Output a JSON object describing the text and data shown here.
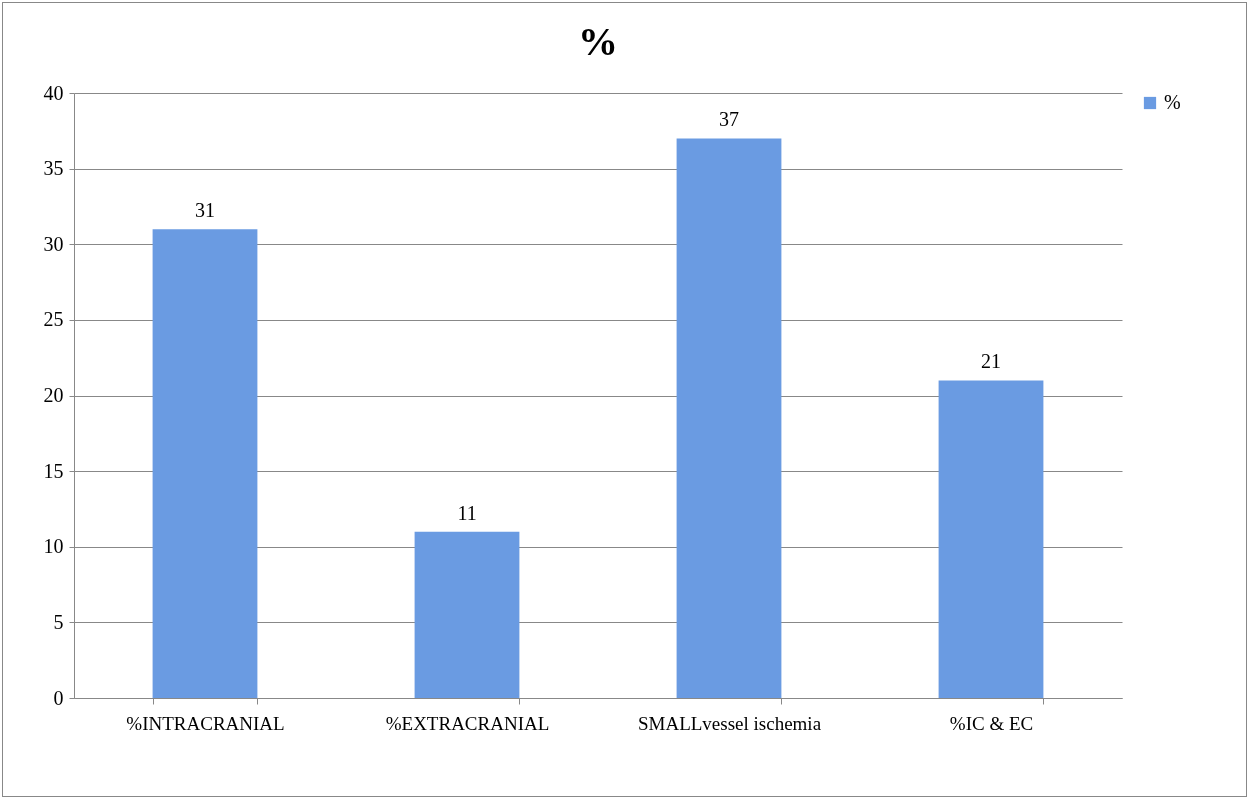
{
  "chart_data": {
    "type": "bar",
    "title": "%",
    "categories": [
      "%INTRACRANIAL",
      "%EXTRACRANIAL",
      "SMALLvessel ischemia",
      "%IC & EC"
    ],
    "series": [
      {
        "name": "%",
        "color": "#6a9be2",
        "values": [
          31,
          11,
          37,
          21
        ]
      }
    ],
    "ylim": [
      0,
      40
    ],
    "yticks": [
      0,
      5,
      10,
      15,
      20,
      25,
      30,
      35,
      40
    ],
    "grid": "y",
    "legend": "right",
    "data_labels": true
  }
}
